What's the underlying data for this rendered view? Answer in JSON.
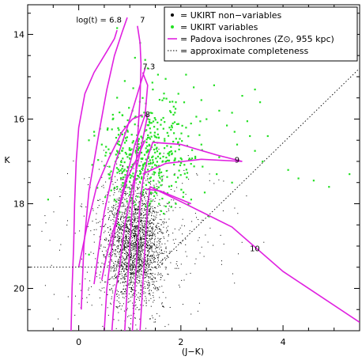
{
  "chart_data": {
    "type": "scatter",
    "xlabel": "(J−K)",
    "ylabel": "K",
    "xlim": [
      -1.0,
      5.5
    ],
    "ylim": [
      21.0,
      13.3
    ],
    "y_inverted": true,
    "xticks": [
      0,
      2,
      4
    ],
    "yticks": [
      14,
      16,
      18,
      20
    ],
    "legend": {
      "placement": "top-right",
      "entries": [
        {
          "marker": "•",
          "label": "= UKIRT non−variables",
          "color": "#000000"
        },
        {
          "marker": "•",
          "label": "= UKIRT variables",
          "color": "#22e022"
        },
        {
          "marker": "—",
          "label": "= Padova isochrones (Z⊙, 955 kpc)",
          "color": "#e020e0"
        },
        {
          "marker": "···",
          "label": "= approximate completeness",
          "color": "#000000"
        }
      ]
    },
    "isochrone_labels": [
      {
        "text": "log(t) = 6.8",
        "x": -0.05,
        "y": 13.65
      },
      {
        "text": "7",
        "x": 1.2,
        "y": 13.65
      },
      {
        "text": "7.3",
        "x": 1.25,
        "y": 14.75
      },
      {
        "text": "8",
        "x": 1.3,
        "y": 15.88
      },
      {
        "text": "9",
        "x": 3.05,
        "y": 16.95
      },
      {
        "text": "10",
        "x": 3.35,
        "y": 19.05
      }
    ],
    "series": [
      {
        "name": "UKIRT non-variables",
        "kind": "scatter",
        "color": "#000000",
        "description_points": "dense clump centred near (J−K)≈1.1, K≈18.9 spanning K≈16.8–21.0",
        "clump": {
          "cx": 1.08,
          "cy": 18.9,
          "sx": 0.28,
          "sy": 0.75
        },
        "count": 2600
      },
      {
        "name": "UKIRT variables",
        "kind": "scatter",
        "color": "#22e022",
        "points": [
          [
            0.75,
            13.85
          ],
          [
            1.2,
            14.2
          ],
          [
            1.3,
            14.6
          ],
          [
            1.35,
            14.8
          ],
          [
            1.55,
            14.95
          ],
          [
            1.7,
            15.05
          ],
          [
            2.1,
            14.95
          ],
          [
            2.25,
            15.25
          ],
          [
            2.4,
            15.55
          ],
          [
            1.95,
            15.4
          ],
          [
            3.2,
            15.45
          ],
          [
            3.45,
            15.3
          ],
          [
            2.75,
            15.8
          ],
          [
            3.0,
            15.85
          ],
          [
            3.55,
            15.6
          ],
          [
            2.5,
            16.0
          ],
          [
            2.9,
            16.15
          ],
          [
            3.3,
            16.05
          ],
          [
            3.7,
            16.4
          ],
          [
            3.45,
            16.75
          ],
          [
            3.6,
            17.0
          ],
          [
            4.1,
            17.2
          ],
          [
            4.3,
            17.4
          ],
          [
            4.6,
            17.45
          ],
          [
            4.9,
            17.6
          ],
          [
            5.3,
            17.3
          ],
          [
            -0.6,
            17.9
          ],
          [
            0.3,
            16.3
          ],
          [
            0.45,
            16.6
          ],
          [
            0.5,
            17.1
          ],
          [
            0.6,
            17.4
          ],
          [
            0.7,
            17.9
          ],
          [
            0.75,
            17.6
          ],
          [
            0.8,
            18.2
          ],
          [
            3.0,
            17.5
          ],
          [
            2.7,
            17.3
          ],
          [
            2.2,
            17.9
          ],
          [
            2.55,
            18.3
          ],
          [
            1.9,
            18.0
          ],
          [
            2.4,
            16.6
          ],
          [
            2.1,
            16.2
          ],
          [
            2.75,
            16.9
          ],
          [
            3.1,
            16.6
          ],
          [
            3.35,
            16.4
          ],
          [
            1.9,
            15.6
          ],
          [
            1.45,
            15.3
          ],
          [
            1.25,
            15.5
          ],
          [
            2.65,
            15.2
          ],
          [
            3.05,
            16.3
          ],
          [
            1.1,
            14.55
          ],
          [
            0.9,
            15.1
          ],
          [
            1.05,
            15.8
          ],
          [
            0.2,
            19.2
          ]
        ],
        "cloud": {
          "cx": 1.35,
          "cy": 16.9,
          "sx": 0.45,
          "sy": 0.6,
          "count": 430
        }
      },
      {
        "name": "Padova isochrones (Z⊙, 955 kpc)",
        "kind": "line",
        "color": "#e020e0",
        "lines": [
          {
            "label": "6.8",
            "points": [
              [
                -0.15,
                21.0
              ],
              [
                -0.13,
                20.0
              ],
              [
                -0.1,
                19.0
              ],
              [
                -0.08,
                18.0
              ],
              [
                -0.05,
                17.0
              ],
              [
                0.0,
                16.2
              ],
              [
                0.12,
                15.4
              ],
              [
                0.3,
                14.9
              ],
              [
                0.55,
                14.4
              ],
              [
                0.7,
                14.1
              ],
              [
                0.75,
                13.9
              ]
            ]
          },
          {
            "label": "6.8b",
            "points": [
              [
                0.05,
                20.5
              ],
              [
                0.1,
                19.0
              ],
              [
                0.2,
                17.7
              ],
              [
                0.4,
                16.3
              ],
              [
                0.55,
                15.3
              ],
              [
                0.7,
                14.5
              ],
              [
                0.85,
                13.95
              ],
              [
                0.95,
                13.6
              ]
            ]
          },
          {
            "label": "7",
            "points": [
              [
                0.9,
                21.0
              ],
              [
                0.95,
                20.0
              ],
              [
                1.0,
                19.0
              ],
              [
                1.05,
                18.0
              ],
              [
                1.12,
                17.2
              ],
              [
                1.15,
                16.5
              ],
              [
                1.2,
                15.5
              ],
              [
                1.22,
                14.7
              ],
              [
                1.2,
                14.2
              ],
              [
                1.15,
                13.8
              ]
            ]
          },
          {
            "label": "7.3",
            "points": [
              [
                0.5,
                21.0
              ],
              [
                0.55,
                20.0
              ],
              [
                0.65,
                19.0
              ],
              [
                0.8,
                18.0
              ],
              [
                0.95,
                17.3
              ],
              [
                1.1,
                16.6
              ],
              [
                1.3,
                15.9
              ],
              [
                1.35,
                15.2
              ],
              [
                1.25,
                14.9
              ]
            ]
          },
          {
            "label": "7.3b",
            "points": [
              [
                0.3,
                19.9
              ],
              [
                0.4,
                19.0
              ],
              [
                0.5,
                18.2
              ],
              [
                0.7,
                17.1
              ],
              [
                0.95,
                16.2
              ],
              [
                1.2,
                15.2
              ],
              [
                1.3,
                14.8
              ]
            ]
          },
          {
            "label": "8",
            "points": [
              [
                0.65,
                21.0
              ],
              [
                0.7,
                20.2
              ],
              [
                0.8,
                19.5
              ],
              [
                0.9,
                18.5
              ],
              [
                1.05,
                17.6
              ],
              [
                1.2,
                16.8
              ],
              [
                1.3,
                16.2
              ],
              [
                1.35,
                15.9
              ]
            ]
          },
          {
            "label": "8b",
            "points": [
              [
                0.0,
                19.5
              ],
              [
                0.15,
                18.6
              ],
              [
                0.35,
                17.6
              ],
              [
                0.6,
                16.9
              ],
              [
                0.85,
                16.3
              ],
              [
                1.05,
                16.0
              ],
              [
                1.25,
                15.9
              ]
            ]
          },
          {
            "label": "8c",
            "points": [
              [
                0.45,
                19.8
              ],
              [
                0.55,
                19.2
              ],
              [
                0.75,
                18.3
              ],
              [
                0.95,
                17.4
              ],
              [
                1.15,
                16.9
              ],
              [
                1.3,
                16.5
              ]
            ]
          },
          {
            "label": "9",
            "points": [
              [
                1.05,
                21.0
              ],
              [
                1.1,
                20.0
              ],
              [
                1.15,
                19.0
              ],
              [
                1.2,
                18.0
              ],
              [
                1.25,
                17.5
              ],
              [
                1.35,
                16.9
              ],
              [
                1.45,
                16.55
              ],
              [
                2.0,
                16.6
              ],
              [
                2.7,
                16.85
              ],
              [
                3.2,
                17.0
              ]
            ]
          },
          {
            "label": "9b",
            "points": [
              [
                1.25,
                17.3
              ],
              [
                1.7,
                17.05
              ],
              [
                2.4,
                16.95
              ],
              [
                3.2,
                17.0
              ]
            ]
          },
          {
            "label": "10",
            "points": [
              [
                1.2,
                21.0
              ],
              [
                1.25,
                20.0
              ],
              [
                1.3,
                19.0
              ],
              [
                1.35,
                18.0
              ],
              [
                1.4,
                17.6
              ],
              [
                2.0,
                17.95
              ],
              [
                3.0,
                18.55
              ],
              [
                4.0,
                19.6
              ],
              [
                5.5,
                20.8
              ]
            ]
          },
          {
            "label": "10b",
            "points": [
              [
                1.3,
                17.65
              ],
              [
                1.6,
                17.7
              ],
              [
                2.2,
                18.0
              ]
            ]
          }
        ]
      },
      {
        "name": "approximate completeness",
        "kind": "dotted-line",
        "color": "#000000",
        "lines": [
          {
            "points": [
              [
                -1.0,
                19.5
              ],
              [
                1.5,
                19.5
              ]
            ]
          },
          {
            "points": [
              [
                1.5,
                19.5
              ],
              [
                5.5,
                14.8
              ]
            ]
          }
        ]
      }
    ]
  }
}
